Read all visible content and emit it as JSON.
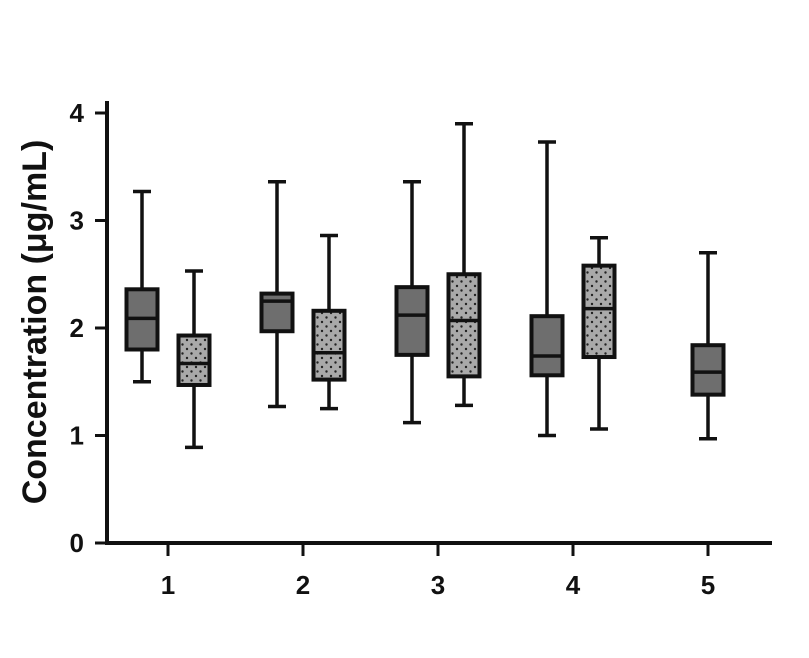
{
  "chart_data": {
    "type": "box",
    "categories": [
      "1",
      "2",
      "3",
      "4",
      "5"
    ],
    "yticks": [
      "0",
      "1",
      "2",
      "3",
      "4"
    ],
    "ylabel": "Concentration (μg/mL)",
    "xlabel": "",
    "ylim": [
      0,
      4
    ],
    "grid": false,
    "series": [
      {
        "fill": "#6e6e6e",
        "pattern": "solid",
        "boxes": [
          {
            "category": "1",
            "min": 1.5,
            "q1": 1.8,
            "median": 2.09,
            "q3": 2.36,
            "max": 3.27
          },
          {
            "category": "2",
            "min": 1.27,
            "q1": 1.97,
            "median": 2.25,
            "q3": 2.32,
            "max": 3.36
          },
          {
            "category": "3",
            "min": 1.12,
            "q1": 1.75,
            "median": 2.12,
            "q3": 2.38,
            "max": 3.36
          },
          {
            "category": "4",
            "min": 1.0,
            "q1": 1.56,
            "median": 1.74,
            "q3": 2.11,
            "max": 3.73
          },
          {
            "category": "5",
            "min": 0.97,
            "q1": 1.38,
            "median": 1.59,
            "q3": 1.84,
            "max": 2.7
          }
        ]
      },
      {
        "fill": "#a9a9a9",
        "pattern": "dotted",
        "boxes": [
          {
            "category": "1",
            "min": 0.89,
            "q1": 1.47,
            "median": 1.67,
            "q3": 1.93,
            "max": 2.53
          },
          {
            "category": "2",
            "min": 1.25,
            "q1": 1.52,
            "median": 1.77,
            "q3": 2.16,
            "max": 2.86
          },
          {
            "category": "3",
            "min": 1.28,
            "q1": 1.55,
            "median": 2.07,
            "q3": 2.5,
            "max": 3.9
          },
          {
            "category": "4",
            "min": 1.06,
            "q1": 1.73,
            "median": 2.18,
            "q3": 2.58,
            "max": 2.84
          }
        ]
      }
    ]
  }
}
